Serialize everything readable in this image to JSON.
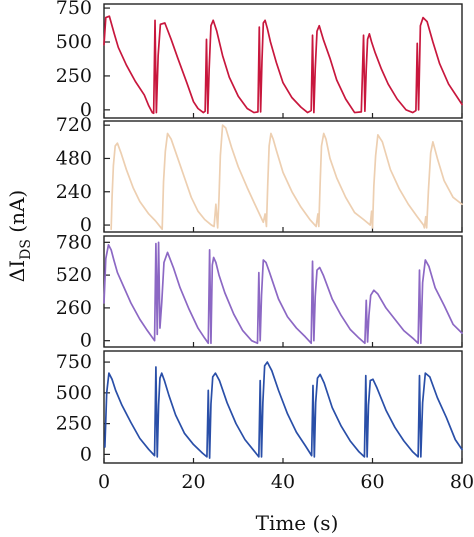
{
  "chart_data": [
    {
      "type": "line",
      "xlim": [
        0,
        80
      ],
      "yticks": [
        "750",
        "500",
        "250",
        "0"
      ],
      "ylim": [
        -60,
        780
      ],
      "color": "#C8173D",
      "series": [
        {
          "x": [
            0,
            0.4,
            1.2,
            2.3,
            3.2,
            5,
            7,
            9,
            10,
            10.8,
            11.1,
            11.4,
            11.7,
            12.1,
            12.6,
            13.6,
            15,
            16.5,
            18.5,
            20,
            21,
            22.2,
            22.6,
            22.9,
            23.2,
            23.5,
            23.9,
            24.4,
            25.2,
            26.5,
            28,
            30,
            32,
            33.5,
            34.4,
            34.7,
            35,
            35.3,
            35.6,
            36,
            36.5,
            37.2,
            38.5,
            40,
            42,
            44,
            45.5,
            46.3,
            46.6,
            46.9,
            47.2,
            47.6,
            48.1,
            49,
            50.5,
            52,
            54,
            56,
            57.5,
            58,
            58.3,
            58.6,
            58.9,
            59.3,
            59.8,
            60.6,
            62,
            63.5,
            65.5,
            67.5,
            69,
            69.7,
            70,
            70.3,
            70.7,
            71.3,
            72.2,
            73.5,
            75,
            77,
            79,
            80
          ],
          "y": [
            480,
            680,
            690,
            560,
            460,
            330,
            210,
            110,
            30,
            -20,
            -25,
            660,
            -20,
            400,
            630,
            640,
            520,
            380,
            200,
            60,
            10,
            -20,
            -10,
            520,
            -25,
            300,
            620,
            660,
            580,
            400,
            240,
            100,
            10,
            -20,
            -15,
            610,
            -15,
            360,
            640,
            660,
            600,
            500,
            350,
            200,
            90,
            20,
            -20,
            -5,
            550,
            -20,
            300,
            580,
            620,
            520,
            380,
            220,
            80,
            -20,
            -15,
            550,
            -10,
            300,
            520,
            560,
            500,
            420,
            300,
            190,
            80,
            0,
            -20,
            -5,
            490,
            0,
            620,
            680,
            650,
            500,
            340,
            190,
            90,
            40
          ]
        }
      ]
    },
    {
      "type": "line",
      "xlim": [
        0,
        80
      ],
      "yticks": [
        "720",
        "480",
        "240",
        "0"
      ],
      "ylim": [
        -50,
        750
      ],
      "color": "#EDCFB1",
      "series": [
        {
          "x": [
            1.6,
            1.8,
            2.1,
            2.5,
            3,
            3.8,
            5,
            6.5,
            8,
            10,
            11.5,
            12.5,
            13,
            13.3,
            13.7,
            14.2,
            15,
            16.5,
            18,
            19.5,
            21,
            22.5,
            24,
            24.6,
            25,
            25.4,
            25.7,
            26,
            26.5,
            27.2,
            28.5,
            30,
            32,
            34,
            35.6,
            36,
            36.3,
            36.6,
            36.9,
            37.3,
            37.8,
            38.5,
            40,
            42,
            44,
            46,
            47.4,
            47.8,
            48,
            48.3,
            48.6,
            49.1,
            49.6,
            50.5,
            52,
            54,
            56,
            58,
            59.5,
            59.8,
            60,
            60.3,
            60.7,
            61.2,
            62.2,
            64,
            66,
            68,
            70,
            71.4,
            71.6,
            71.9,
            72.1,
            72.5,
            73,
            73.5,
            74.5,
            76,
            78,
            80
          ],
          "y": [
            -30,
            200,
            430,
            570,
            590,
            520,
            400,
            270,
            170,
            80,
            30,
            -10,
            -30,
            310,
            530,
            660,
            620,
            480,
            340,
            200,
            100,
            40,
            0,
            -10,
            150,
            -20,
            200,
            500,
            720,
            700,
            560,
            420,
            270,
            130,
            20,
            80,
            -10,
            300,
            570,
            660,
            620,
            540,
            380,
            240,
            130,
            40,
            -10,
            80,
            -10,
            300,
            570,
            660,
            620,
            480,
            340,
            200,
            90,
            40,
            0,
            100,
            -20,
            280,
            500,
            650,
            600,
            400,
            260,
            150,
            60,
            0,
            -20,
            60,
            -20,
            250,
            520,
            600,
            480,
            320,
            200,
            150
          ]
        }
      ]
    },
    {
      "type": "line",
      "xlim": [
        0,
        80
      ],
      "yticks": [
        "780",
        "520",
        "260",
        "0"
      ],
      "ylim": [
        -50,
        830
      ],
      "color": "#8C68C4",
      "series": [
        {
          "x": [
            0,
            0.4,
            1,
            1.6,
            2.2,
            3,
            4.5,
            6,
            8,
            9.5,
            10.5,
            11.3,
            11.6,
            11.9,
            12.2,
            12.5,
            12.9,
            13.4,
            14.2,
            15.5,
            17,
            19,
            21,
            22.5,
            23.3,
            23.6,
            23.9,
            24.2,
            24.5,
            25,
            25.7,
            27,
            29,
            31,
            33,
            34.3,
            34.6,
            34.9,
            35.2,
            35.6,
            36.2,
            37,
            39,
            41,
            43,
            45,
            46.3,
            46.6,
            46.9,
            47.2,
            47.6,
            48.2,
            49,
            51,
            53,
            55,
            57,
            58.3,
            58.6,
            58.9,
            59.2,
            59.6,
            60.3,
            61.2,
            63,
            65,
            67,
            69,
            70.2,
            70.5,
            70.8,
            71.2,
            71.8,
            72.6,
            74,
            76,
            78,
            80
          ],
          "y": [
            300,
            650,
            760,
            720,
            640,
            540,
            420,
            300,
            170,
            90,
            40,
            0,
            770,
            50,
            780,
            100,
            300,
            620,
            700,
            580,
            420,
            250,
            100,
            20,
            -20,
            720,
            -20,
            600,
            660,
            620,
            520,
            380,
            210,
            80,
            0,
            -20,
            540,
            0,
            360,
            640,
            620,
            540,
            330,
            190,
            100,
            30,
            -20,
            630,
            0,
            350,
            560,
            580,
            520,
            330,
            200,
            90,
            20,
            -20,
            320,
            -10,
            200,
            360,
            400,
            370,
            260,
            170,
            80,
            20,
            -20,
            560,
            -20,
            460,
            640,
            590,
            420,
            280,
            130,
            60
          ]
        }
      ]
    },
    {
      "type": "line",
      "xlim": [
        0,
        80
      ],
      "yticks": [
        "750",
        "500",
        "250",
        "0"
      ],
      "ylim": [
        -70,
        840
      ],
      "color": "#2A4FA8",
      "series": [
        {
          "x": [
            0.2,
            0.6,
            1.1,
            1.8,
            2.6,
            4,
            6,
            8,
            10,
            11.3,
            11.6,
            11.9,
            12.2,
            12.5,
            12.9,
            13.5,
            14.5,
            16,
            18,
            20,
            22,
            23,
            23.3,
            23.6,
            23.9,
            24.3,
            24.9,
            25.8,
            27.5,
            29.5,
            31.5,
            33.5,
            34.6,
            34.9,
            35.2,
            35.5,
            35.9,
            36.5,
            37.5,
            39,
            41,
            43,
            45,
            46.4,
            46.7,
            47,
            47.3,
            47.7,
            48.3,
            49.2,
            51,
            53,
            55,
            57,
            58.2,
            58.5,
            58.8,
            59.1,
            59.5,
            60.1,
            61,
            63,
            65,
            67,
            69,
            70.2,
            70.5,
            70.8,
            71.2,
            71.8,
            72.8,
            74.5,
            76.5,
            78.5,
            80
          ],
          "y": [
            60,
            500,
            660,
            610,
            520,
            400,
            260,
            130,
            40,
            -10,
            710,
            -20,
            400,
            620,
            660,
            600,
            480,
            320,
            170,
            80,
            10,
            -20,
            520,
            -30,
            410,
            630,
            660,
            600,
            420,
            250,
            120,
            30,
            -20,
            600,
            -20,
            420,
            720,
            750,
            680,
            520,
            330,
            180,
            70,
            -10,
            560,
            -20,
            420,
            620,
            650,
            580,
            380,
            230,
            110,
            20,
            -20,
            640,
            -20,
            400,
            600,
            610,
            540,
            360,
            220,
            110,
            20,
            -20,
            640,
            -20,
            420,
            660,
            630,
            460,
            300,
            120,
            40
          ]
        }
      ]
    }
  ],
  "shared_axes": {
    "xticks": [
      "0",
      "20",
      "40",
      "60",
      "80"
    ],
    "xlabel": "Time (s)",
    "ylabel_main": "ΔI",
    "ylabel_sub": "DS",
    "ylabel_unit": " (nA)"
  }
}
